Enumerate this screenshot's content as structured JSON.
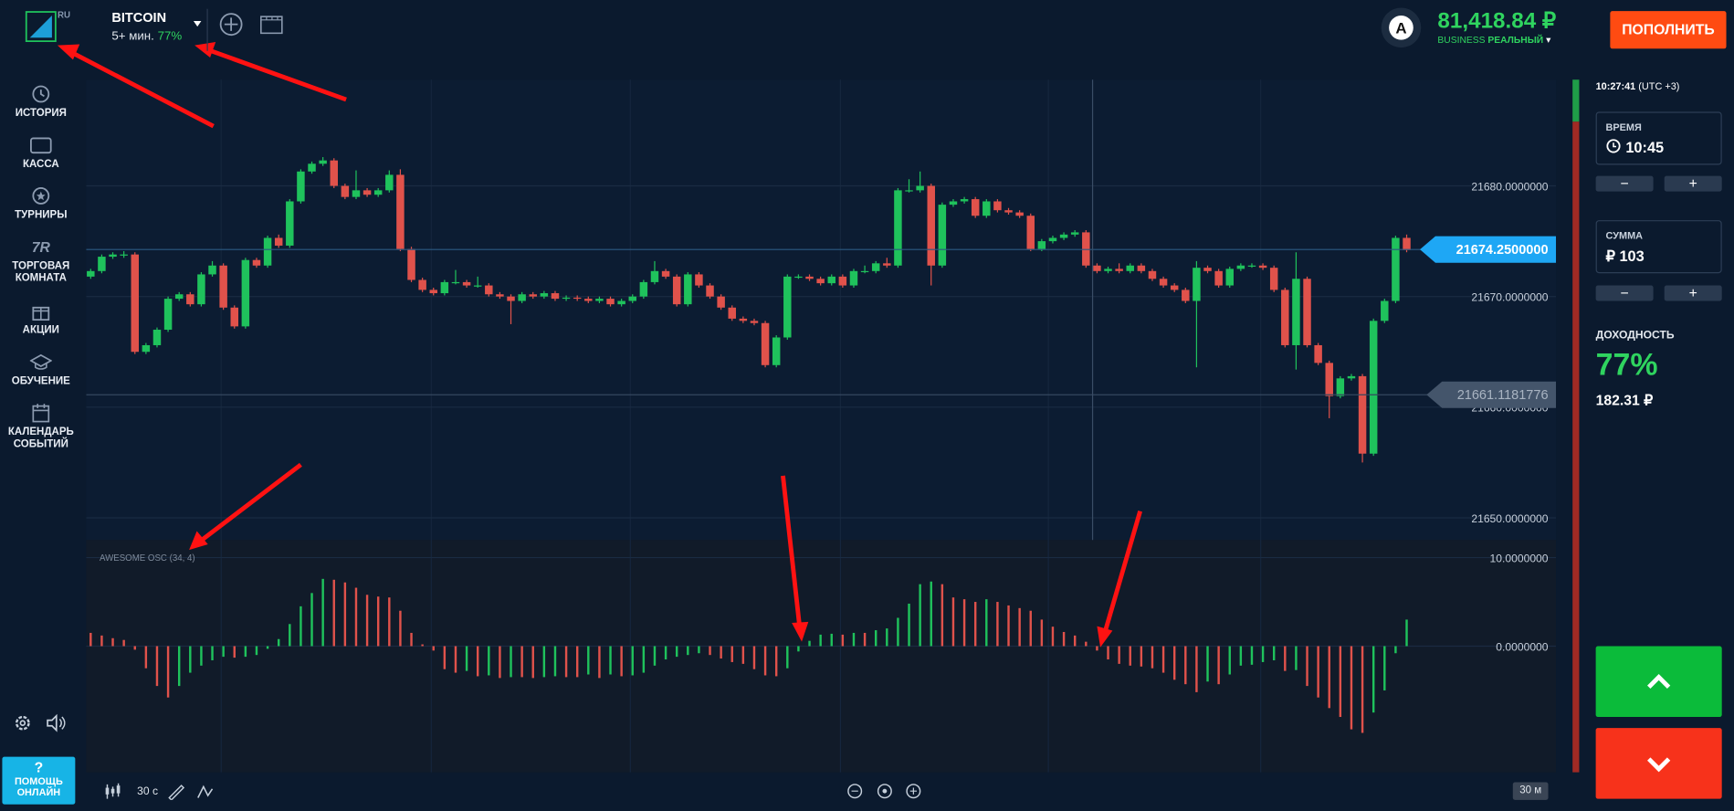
{
  "header": {
    "logo_tag": "RU",
    "asset": "BITCOIN",
    "expiry": "5+ мин.",
    "payout": "77%",
    "avatar": "A",
    "balance": "81,418.84 ₽",
    "account_type": "BUSINESS",
    "account_mode": "РЕАЛЬНЫЙ",
    "deposit_button": "ПОПОЛНИТЬ"
  },
  "sidebar": {
    "items": [
      "ИСТОРИЯ",
      "КАССА",
      "ТУРНИРЫ",
      "ТОРГОВАЯ КОМНАТА",
      "АКЦИИ",
      "ОБУЧЕНИЕ",
      "КАЛЕНДАРЬ СОБЫТИЙ"
    ],
    "help_icon": "?",
    "help": "ПОМОЩЬ ОНЛАЙН"
  },
  "toolbar": {
    "interval": "30 с",
    "zoom": "30 м"
  },
  "panel": {
    "time": "10:27:41",
    "timezone": "(UTC +3)",
    "time_label": "ВРЕМЯ",
    "time_value": "10:45",
    "amount_label": "СУММА",
    "amount_value": "₽ 103",
    "minus": "−",
    "plus": "+",
    "profit_label": "ДОХОДНОСТЬ",
    "profit_percent": "77%",
    "profit_amount": "182.31 ₽"
  },
  "chart_data": [
    {
      "type": "candlestick",
      "colors": {
        "up": "#1fc25c",
        "down": "#e0524b"
      },
      "grid": true,
      "ylim": [
        21648,
        21689.6
      ],
      "yticks": [
        {
          "value": 21680,
          "label": "21680.0000000"
        },
        {
          "value": 21670,
          "label": "21670.0000000"
        },
        {
          "value": 21660,
          "label": "21660.0000000"
        },
        {
          "value": 21650,
          "label": "21650.0000000"
        }
      ],
      "price_line": {
        "value": 21674.25,
        "label": "21674.2500000"
      },
      "level_line": 21661.1181776,
      "candles": [
        [
          21671.8,
          21672.5,
          21671.6,
          21672.3
        ],
        [
          21672.3,
          21673.8,
          21672.1,
          21673.6
        ],
        [
          21673.6,
          21674.0,
          21673.4,
          21673.8
        ],
        [
          21673.8,
          21674.1,
          21673.5,
          21673.8
        ],
        [
          21673.8,
          21674.0,
          21664.8,
          21665.0
        ],
        [
          21665.0,
          21665.8,
          21664.8,
          21665.6
        ],
        [
          21665.6,
          21667.2,
          21665.4,
          21667.0
        ],
        [
          21667.0,
          21670.0,
          21666.8,
          21669.8
        ],
        [
          21669.8,
          21670.4,
          21669.6,
          21670.2
        ],
        [
          21670.2,
          21670.4,
          21669.1,
          21669.3
        ],
        [
          21669.3,
          21672.2,
          21669.1,
          21672.0
        ],
        [
          21672.0,
          21673.2,
          21671.8,
          21672.8
        ],
        [
          21672.8,
          21673.0,
          21668.8,
          21669.0
        ],
        [
          21669.0,
          21669.2,
          21667.1,
          21667.3
        ],
        [
          21667.3,
          21673.5,
          21667.1,
          21673.3
        ],
        [
          21673.3,
          21673.5,
          21672.6,
          21672.8
        ],
        [
          21672.8,
          21675.5,
          21672.6,
          21675.3
        ],
        [
          21675.3,
          21675.6,
          21674.4,
          21674.6
        ],
        [
          21674.6,
          21678.8,
          21674.4,
          21678.6
        ],
        [
          21678.6,
          21681.5,
          21678.4,
          21681.3
        ],
        [
          21681.3,
          21682.2,
          21681.1,
          21682.0
        ],
        [
          21682.0,
          21682.6,
          21681.8,
          21682.3
        ],
        [
          21682.3,
          21682.5,
          21679.8,
          21680.0
        ],
        [
          21680.0,
          21680.2,
          21678.8,
          21679.0
        ],
        [
          21679.0,
          21681.4,
          21678.8,
          21679.6
        ],
        [
          21679.6,
          21679.8,
          21679.0,
          21679.2
        ],
        [
          21679.2,
          21679.8,
          21679.0,
          21679.6
        ],
        [
          21679.6,
          21681.4,
          21679.4,
          21681.0
        ],
        [
          21681.0,
          21681.5,
          21674.1,
          21674.3
        ],
        [
          21674.3,
          21674.5,
          21671.3,
          21671.5
        ],
        [
          21671.5,
          21671.7,
          21670.4,
          21670.6
        ],
        [
          21670.6,
          21670.8,
          21670.1,
          21670.3
        ],
        [
          21670.3,
          21671.5,
          21670.1,
          21671.3
        ],
        [
          21671.3,
          21672.4,
          21671.1,
          21671.3
        ],
        [
          21671.3,
          21671.5,
          21670.8,
          21671.0
        ],
        [
          21671.0,
          21671.8,
          21670.8,
          21671.0
        ],
        [
          21671.0,
          21671.2,
          21670.0,
          21670.2
        ],
        [
          21670.2,
          21670.4,
          21669.8,
          21670.0
        ],
        [
          21670.0,
          21670.2,
          21667.5,
          21669.6
        ],
        [
          21669.6,
          21670.4,
          21669.4,
          21670.2
        ],
        [
          21670.2,
          21670.4,
          21669.8,
          21670.0
        ],
        [
          21670.0,
          21670.5,
          21669.8,
          21670.3
        ],
        [
          21670.3,
          21670.5,
          21669.6,
          21669.8
        ],
        [
          21669.8,
          21670.1,
          21669.6,
          21669.9
        ],
        [
          21669.9,
          21670.1,
          21669.6,
          21669.8
        ],
        [
          21669.8,
          21670.0,
          21669.4,
          21669.6
        ],
        [
          21669.6,
          21670.0,
          21669.4,
          21669.8
        ],
        [
          21669.8,
          21670.0,
          21669.1,
          21669.3
        ],
        [
          21669.3,
          21669.8,
          21669.1,
          21669.6
        ],
        [
          21669.6,
          21670.2,
          21669.4,
          21670.0
        ],
        [
          21670.0,
          21671.5,
          21669.8,
          21671.3
        ],
        [
          21671.3,
          21673.2,
          21671.1,
          21672.3
        ],
        [
          21672.3,
          21672.5,
          21671.6,
          21671.8
        ],
        [
          21671.8,
          21672.0,
          21669.1,
          21669.3
        ],
        [
          21669.3,
          21672.2,
          21669.1,
          21672.0
        ],
        [
          21672.0,
          21672.2,
          21670.8,
          21671.0
        ],
        [
          21671.0,
          21671.2,
          21669.8,
          21670.0
        ],
        [
          21670.0,
          21670.2,
          21668.8,
          21669.0
        ],
        [
          21669.0,
          21669.2,
          21667.8,
          21668.0
        ],
        [
          21668.0,
          21668.2,
          21667.6,
          21667.8
        ],
        [
          21667.8,
          21668.0,
          21667.4,
          21667.6
        ],
        [
          21667.6,
          21667.8,
          21663.6,
          21663.8
        ],
        [
          21663.8,
          21666.5,
          21663.6,
          21666.3
        ],
        [
          21666.3,
          21672.0,
          21666.1,
          21671.8
        ],
        [
          21671.8,
          21672.0,
          21671.6,
          21671.8
        ],
        [
          21671.8,
          21672.0,
          21671.4,
          21671.6
        ],
        [
          21671.6,
          21671.8,
          21671.0,
          21671.2
        ],
        [
          21671.2,
          21672.0,
          21671.0,
          21671.8
        ],
        [
          21671.8,
          21672.0,
          21670.8,
          21671.0
        ],
        [
          21671.0,
          21672.5,
          21670.8,
          21672.3
        ],
        [
          21672.3,
          21672.8,
          21672.1,
          21672.3
        ],
        [
          21672.3,
          21673.2,
          21672.1,
          21673.0
        ],
        [
          21673.0,
          21673.5,
          21672.6,
          21672.8
        ],
        [
          21672.8,
          21679.8,
          21672.6,
          21679.6
        ],
        [
          21679.6,
          21680.6,
          21679.4,
          21679.6
        ],
        [
          21679.6,
          21681.3,
          21679.4,
          21680.0
        ],
        [
          21680.0,
          21680.2,
          21671.0,
          21672.8
        ],
        [
          21672.8,
          21678.5,
          21672.6,
          21678.3
        ],
        [
          21678.3,
          21678.8,
          21678.1,
          21678.6
        ],
        [
          21678.6,
          21679.0,
          21678.4,
          21678.8
        ],
        [
          21678.8,
          21679.0,
          21677.1,
          21677.3
        ],
        [
          21677.3,
          21678.8,
          21677.1,
          21678.6
        ],
        [
          21678.6,
          21678.8,
          21677.6,
          21677.8
        ],
        [
          21677.8,
          21678.0,
          21677.4,
          21677.6
        ],
        [
          21677.6,
          21677.8,
          21677.1,
          21677.3
        ],
        [
          21677.3,
          21677.5,
          21674.1,
          21674.3
        ],
        [
          21674.3,
          21675.2,
          21674.1,
          21675.0
        ],
        [
          21675.0,
          21675.5,
          21674.8,
          21675.3
        ],
        [
          21675.3,
          21675.8,
          21675.1,
          21675.6
        ],
        [
          21675.6,
          21676.0,
          21675.4,
          21675.8
        ],
        [
          21675.8,
          21676.0,
          21672.6,
          21672.8
        ],
        [
          21672.8,
          21673.0,
          21672.1,
          21672.3
        ],
        [
          21672.3,
          21672.7,
          21672.1,
          21672.5
        ],
        [
          21672.5,
          21673.0,
          21672.1,
          21672.3
        ],
        [
          21672.3,
          21673.0,
          21672.1,
          21672.8
        ],
        [
          21672.8,
          21673.0,
          21672.1,
          21672.3
        ],
        [
          21672.3,
          21672.5,
          21671.4,
          21671.6
        ],
        [
          21671.6,
          21671.8,
          21670.8,
          21671.0
        ],
        [
          21671.0,
          21671.2,
          21670.4,
          21670.6
        ],
        [
          21670.6,
          21670.8,
          21669.4,
          21669.6
        ],
        [
          21669.6,
          21673.2,
          21663.6,
          21672.6
        ],
        [
          21672.6,
          21672.8,
          21672.1,
          21672.3
        ],
        [
          21672.3,
          21672.5,
          21670.8,
          21671.0
        ],
        [
          21671.0,
          21672.7,
          21670.8,
          21672.5
        ],
        [
          21672.5,
          21673.0,
          21672.3,
          21672.8
        ],
        [
          21672.8,
          21673.0,
          21672.6,
          21672.8
        ],
        [
          21672.8,
          21673.0,
          21672.4,
          21672.6
        ],
        [
          21672.6,
          21672.8,
          21670.4,
          21670.6
        ],
        [
          21670.6,
          21670.8,
          21665.4,
          21665.6
        ],
        [
          21665.6,
          21674.0,
          21663.4,
          21671.6
        ],
        [
          21671.6,
          21671.8,
          21665.4,
          21665.6
        ],
        [
          21665.6,
          21665.8,
          21663.8,
          21664.0
        ],
        [
          21664.0,
          21664.2,
          21659.0,
          21661.0
        ],
        [
          21661.0,
          21662.8,
          21660.8,
          21662.6
        ],
        [
          21662.6,
          21663.0,
          21662.4,
          21662.8
        ],
        [
          21662.8,
          21663.0,
          21655.0,
          21655.8
        ],
        [
          21655.8,
          21668.0,
          21655.6,
          21667.8
        ],
        [
          21667.8,
          21669.8,
          21667.6,
          21669.6
        ],
        [
          21669.6,
          21675.5,
          21669.4,
          21675.3
        ],
        [
          21675.3,
          21675.6,
          21674.0,
          21674.2
        ]
      ]
    },
    {
      "type": "bar",
      "title": "AWESOME OSC (34, 4)",
      "colors": {
        "up": "#1fc25c",
        "down": "#e0524b"
      },
      "grid": true,
      "ylim": [
        -14.25,
        12
      ],
      "yticks": [
        {
          "value": 10,
          "label": "10.0000000"
        },
        {
          "value": 0,
          "label": "0.0000000"
        }
      ],
      "values": [
        1.5,
        1.2,
        0.9,
        0.7,
        -0.4,
        -2.5,
        -4.5,
        -5.8,
        -4.5,
        -3.0,
        -2.2,
        -1.6,
        -1.2,
        -1.3,
        -1.2,
        -1.0,
        -0.3,
        0.8,
        2.5,
        4.5,
        6.0,
        7.6,
        7.5,
        7.2,
        6.6,
        5.8,
        5.6,
        5.5,
        4.0,
        1.5,
        0.2,
        -0.5,
        -2.6,
        -3.0,
        -2.8,
        -3.4,
        -3.3,
        -3.6,
        -3.5,
        -3.5,
        -3.6,
        -3.5,
        -3.4,
        -3.5,
        -3.5,
        -3.2,
        -3.6,
        -3.2,
        -3.4,
        -3.3,
        -3.0,
        -2.2,
        -1.5,
        -1.2,
        -1.0,
        -0.8,
        -1.0,
        -1.4,
        -1.8,
        -2.0,
        -2.6,
        -3.3,
        -3.4,
        -2.5,
        -0.6,
        0.6,
        1.3,
        1.4,
        1.3,
        1.5,
        1.5,
        1.8,
        2.0,
        3.2,
        4.8,
        7.0,
        7.3,
        7.0,
        5.5,
        5.3,
        5.0,
        5.3,
        5.0,
        4.6,
        4.3,
        4.0,
        3.0,
        2.2,
        1.6,
        1.2,
        0.5,
        -0.5,
        -1.5,
        -2.0,
        -2.2,
        -2.3,
        -2.5,
        -3.0,
        -3.8,
        -4.3,
        -5.2,
        -4.0,
        -4.3,
        -3.2,
        -2.2,
        -2.1,
        -1.8,
        -1.6,
        -2.8,
        -2.7,
        -4.5,
        -5.8,
        -7.0,
        -8.0,
        -9.4,
        -9.8,
        -7.5,
        -5.0,
        -0.8,
        3.0
      ]
    }
  ]
}
